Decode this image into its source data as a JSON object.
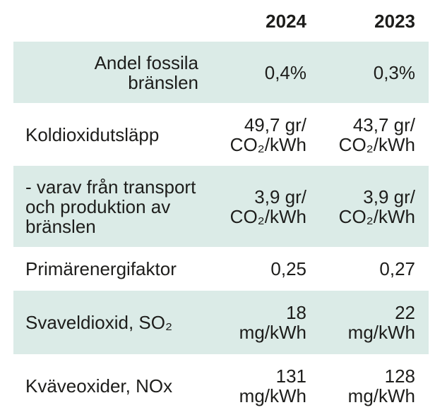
{
  "table": {
    "columns": [
      "2024",
      "2023"
    ],
    "rows": [
      {
        "label": "Andel fossila bränslen",
        "values": [
          "0,4%",
          "0,3%"
        ]
      },
      {
        "label": "Koldioxidutsläpp",
        "values": [
          "49,7 gr/\nCO₂/kWh",
          "43,7 gr/\nCO₂/kWh"
        ]
      },
      {
        "label": "- varav från transport och produktion av bränslen",
        "values": [
          "3,9 gr/\nCO₂/kWh",
          "3,9 gr/\nCO₂/kWh"
        ]
      },
      {
        "label": "Primärenergifaktor",
        "values": [
          "0,25",
          "0,27"
        ]
      },
      {
        "label": "Svaveldioxid, SO₂",
        "values": [
          "18\nmg/kWh",
          "22\nmg/kWh"
        ]
      },
      {
        "label": "Kväveoxider, NOx",
        "values": [
          "131\nmg/kWh",
          "128\nmg/kWh"
        ]
      }
    ],
    "colors": {
      "row_shaded": "#dbebe7",
      "text": "#1d1d1b",
      "background": "#ffffff"
    }
  }
}
